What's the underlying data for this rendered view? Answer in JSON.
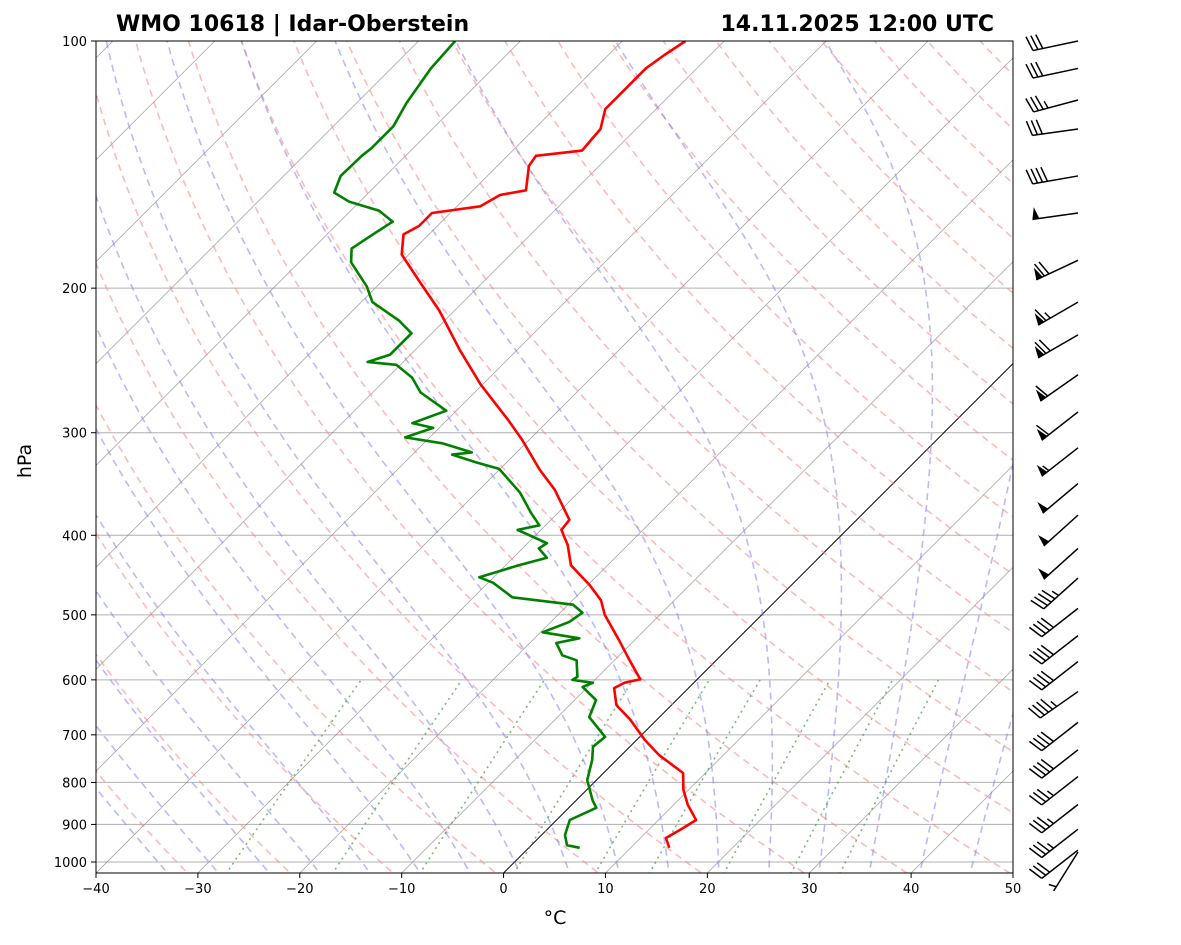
{
  "chart_data": {
    "type": "line",
    "subtype": "skew-t log-p",
    "title_left": "WMO 10618 | Idar-Oberstein",
    "title_right": "14.11.2025 12:00 UTC",
    "xlabel": "°C",
    "ylabel": "hPa",
    "xlim": [
      -40,
      50
    ],
    "ylim": [
      1031,
      100
    ],
    "xticks": [
      "−40",
      "−30",
      "−20",
      "−10",
      "0",
      "10",
      "20",
      "30",
      "40",
      "50"
    ],
    "xtick_values": [
      -40,
      -30,
      -20,
      -10,
      0,
      10,
      20,
      30,
      40,
      50
    ],
    "yticks": [
      "100",
      "200",
      "300",
      "400",
      "500",
      "600",
      "700",
      "800",
      "900",
      "1000"
    ],
    "ytick_values": [
      100,
      200,
      300,
      400,
      500,
      600,
      700,
      800,
      900,
      1000
    ],
    "grid": true,
    "colors": {
      "temperature": "#ff0000",
      "dewpoint": "#008000",
      "dry_adiabat": "#ff8080",
      "moist_adiabat": "#8080ff",
      "mixing_ratio": "#40a040",
      "isotherm": "#808080",
      "zero_isotherm": "#000000"
    },
    "series": [
      {
        "name": "Temperature",
        "points": [
          [
            961,
            13.8
          ],
          [
            935,
            12.5
          ],
          [
            914,
            13.1
          ],
          [
            889,
            13.7
          ],
          [
            852,
            11.4
          ],
          [
            817,
            9.5
          ],
          [
            779,
            7.8
          ],
          [
            741,
            3.7
          ],
          [
            710,
            0.8
          ],
          [
            671,
            -2.6
          ],
          [
            644,
            -5.4
          ],
          [
            614,
            -7.3
          ],
          [
            605,
            -6.8
          ],
          [
            599,
            -5.6
          ],
          [
            568,
            -8.5
          ],
          [
            537,
            -11.5
          ],
          [
            500,
            -15.4
          ],
          [
            480,
            -17.2
          ],
          [
            460,
            -19.8
          ],
          [
            435,
            -23.6
          ],
          [
            411,
            -25.9
          ],
          [
            394,
            -28.0
          ],
          [
            383,
            -28.2
          ],
          [
            352,
            -32.6
          ],
          [
            333,
            -36.0
          ],
          [
            306,
            -40.7
          ],
          [
            290,
            -43.9
          ],
          [
            262,
            -50.2
          ],
          [
            238,
            -55.6
          ],
          [
            213,
            -61.5
          ],
          [
            196,
            -66.4
          ],
          [
            182,
            -70.7
          ],
          [
            172,
            -72.5
          ],
          [
            168,
            -71.8
          ],
          [
            162,
            -71.8
          ],
          [
            159,
            -67.7
          ],
          [
            154,
            -66.9
          ],
          [
            152,
            -64.8
          ],
          [
            142,
            -66.9
          ],
          [
            138,
            -67.2
          ],
          [
            136,
            -63.2
          ],
          [
            128,
            -63.5
          ],
          [
            121,
            -65.0
          ],
          [
            116,
            -65.0
          ],
          [
            108,
            -65.0
          ],
          [
            104,
            -64.5
          ],
          [
            100,
            -63.8
          ]
        ]
      },
      {
        "name": "Dewpoint",
        "points": [
          [
            961,
            5.0
          ],
          [
            954,
            3.5
          ],
          [
            927,
            2.3
          ],
          [
            889,
            1.3
          ],
          [
            859,
            2.7
          ],
          [
            841,
            1.6
          ],
          [
            795,
            -0.9
          ],
          [
            751,
            -2.4
          ],
          [
            724,
            -3.6
          ],
          [
            704,
            -3.4
          ],
          [
            666,
            -6.9
          ],
          [
            635,
            -7.9
          ],
          [
            612,
            -10.5
          ],
          [
            605,
            -9.9
          ],
          [
            600,
            -12.2
          ],
          [
            595,
            -12.0
          ],
          [
            568,
            -13.7
          ],
          [
            560,
            -15.6
          ],
          [
            541,
            -17.4
          ],
          [
            534,
            -15.6
          ],
          [
            525,
            -19.8
          ],
          [
            510,
            -18.2
          ],
          [
            497,
            -17.8
          ],
          [
            486,
            -19.5
          ],
          [
            476,
            -26.2
          ],
          [
            457,
            -29.5
          ],
          [
            450,
            -31.4
          ],
          [
            435,
            -28.7
          ],
          [
            426,
            -26.7
          ],
          [
            415,
            -28.4
          ],
          [
            409,
            -28.1
          ],
          [
            394,
            -32.3
          ],
          [
            389,
            -30.6
          ],
          [
            376,
            -32.6
          ],
          [
            355,
            -35.7
          ],
          [
            335,
            -39.5
          ],
          [
            332,
            -40.1
          ],
          [
            326,
            -43.0
          ],
          [
            319,
            -46.1
          ],
          [
            317,
            -44.4
          ],
          [
            309,
            -48.2
          ],
          [
            304,
            -52.4
          ],
          [
            296,
            -50.6
          ],
          [
            292,
            -53.1
          ],
          [
            282,
            -51.0
          ],
          [
            268,
            -55.3
          ],
          [
            257,
            -57.6
          ],
          [
            248,
            -60.4
          ],
          [
            246,
            -63.5
          ],
          [
            241,
            -62.0
          ],
          [
            227,
            -62.0
          ],
          [
            219,
            -64.5
          ],
          [
            208,
            -68.9
          ],
          [
            199,
            -71.0
          ],
          [
            186,
            -74.9
          ],
          [
            179,
            -76.2
          ],
          [
            173,
            -75.6
          ],
          [
            166,
            -74.8
          ],
          [
            161,
            -77.2
          ],
          [
            157,
            -81.0
          ],
          [
            153,
            -83.4
          ],
          [
            146,
            -84.4
          ],
          [
            138,
            -84.3
          ],
          [
            135,
            -84.1
          ],
          [
            127,
            -84.1
          ],
          [
            119,
            -85.1
          ],
          [
            108,
            -86.1
          ],
          [
            100,
            -86.4
          ]
        ]
      }
    ],
    "wind_barbs": [
      {
        "p": 100,
        "dir": 258,
        "kt": 30
      },
      {
        "p": 108,
        "dir": 258,
        "kt": 30
      },
      {
        "p": 118,
        "dir": 255,
        "kt": 35
      },
      {
        "p": 128,
        "dir": 262,
        "kt": 30
      },
      {
        "p": 146,
        "dir": 260,
        "kt": 40
      },
      {
        "p": 162,
        "dir": 262,
        "kt": 50
      },
      {
        "p": 185,
        "dir": 245,
        "kt": 70
      },
      {
        "p": 208,
        "dir": 240,
        "kt": 65
      },
      {
        "p": 228,
        "dir": 240,
        "kt": 70
      },
      {
        "p": 255,
        "dir": 235,
        "kt": 60
      },
      {
        "p": 283,
        "dir": 232,
        "kt": 60
      },
      {
        "p": 313,
        "dir": 232,
        "kt": 55
      },
      {
        "p": 346,
        "dir": 230,
        "kt": 50
      },
      {
        "p": 378,
        "dir": 228,
        "kt": 50
      },
      {
        "p": 415,
        "dir": 228,
        "kt": 50
      },
      {
        "p": 451,
        "dir": 228,
        "kt": 45
      },
      {
        "p": 491,
        "dir": 232,
        "kt": 40
      },
      {
        "p": 530,
        "dir": 232,
        "kt": 40
      },
      {
        "p": 570,
        "dir": 232,
        "kt": 40
      },
      {
        "p": 620,
        "dir": 235,
        "kt": 45
      },
      {
        "p": 676,
        "dir": 232,
        "kt": 40
      },
      {
        "p": 730,
        "dir": 232,
        "kt": 40
      },
      {
        "p": 787,
        "dir": 232,
        "kt": 35
      },
      {
        "p": 851,
        "dir": 232,
        "kt": 35
      },
      {
        "p": 912,
        "dir": 232,
        "kt": 35
      },
      {
        "p": 967,
        "dir": 232,
        "kt": 30
      },
      {
        "p": 1010,
        "dir": 212,
        "kt": 5
      }
    ]
  }
}
